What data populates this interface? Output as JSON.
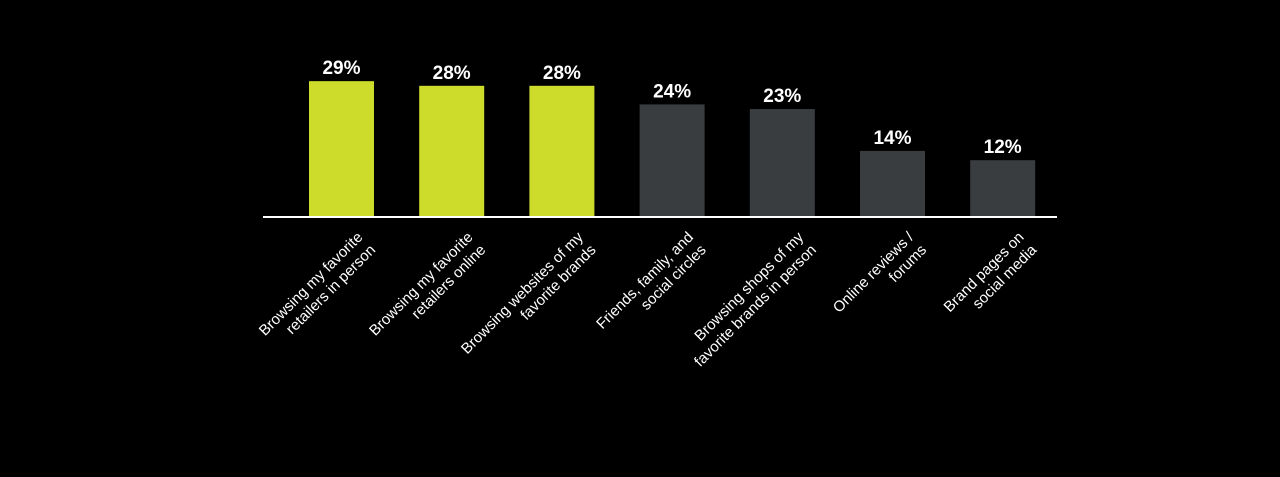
{
  "chart_data": {
    "type": "bar",
    "title": "",
    "xlabel": "",
    "ylabel": "",
    "ylim": [
      0,
      30
    ],
    "grid": false,
    "legend": "none",
    "categories": [
      "Browsing my favorite retailers in person",
      "Browsing my favorite retailers online",
      "Browsing websites of my favorite brands",
      "Friends, family, and social circles",
      "Browsing shops of my favorite brands in person",
      "Online reviews / forums",
      "Brand pages on social media"
    ],
    "category_lines": [
      [
        "Browsing my favorite",
        "retailers in person"
      ],
      [
        "Browsing my favorite",
        "retailers online"
      ],
      [
        "Browsing websites of my",
        "favorite brands"
      ],
      [
        "Friends, family, and",
        "social circles"
      ],
      [
        "Browsing shops of my",
        "favorite brands in person"
      ],
      [
        "Online reviews /",
        "forums"
      ],
      [
        "Brand pages on",
        "social media"
      ]
    ],
    "values": [
      29,
      28,
      28,
      24,
      23,
      14,
      12
    ],
    "data_labels": [
      "29%",
      "28%",
      "28%",
      "24%",
      "23%",
      "14%",
      "12%"
    ],
    "highlighted": [
      true,
      true,
      true,
      false,
      false,
      false,
      false
    ],
    "colors": {
      "background": "#000000",
      "highlight": "#cddb2b",
      "default": "#3a3d40",
      "axis": "#ffffff",
      "text": "#ffffff"
    }
  }
}
